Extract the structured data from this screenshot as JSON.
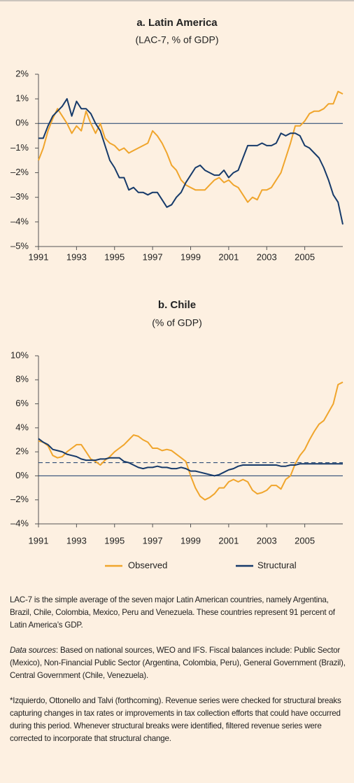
{
  "chart_data": [
    {
      "type": "line",
      "title": "a. Latin America",
      "subtitle": "(LAC-7, % of GDP)",
      "x": [
        1991,
        1991.25,
        1991.5,
        1991.75,
        1992,
        1992.25,
        1992.5,
        1992.75,
        1993,
        1993.25,
        1993.5,
        1993.75,
        1994,
        1994.25,
        1994.5,
        1994.75,
        1995,
        1995.25,
        1995.5,
        1995.75,
        1996,
        1996.25,
        1996.5,
        1996.75,
        1997,
        1997.25,
        1997.5,
        1997.75,
        1998,
        1998.25,
        1998.5,
        1998.75,
        1999,
        1999.25,
        1999.5,
        1999.75,
        2000,
        2000.25,
        2000.5,
        2000.75,
        2001,
        2001.25,
        2001.5,
        2001.75,
        2002,
        2002.25,
        2002.5,
        2002.75,
        2003,
        2003.25,
        2003.5,
        2003.75,
        2004,
        2004.25,
        2004.5,
        2004.75,
        2005,
        2005.25,
        2005.5,
        2005.75,
        2006,
        2006.25,
        2006.5,
        2006.75,
        2007
      ],
      "series": [
        {
          "name": "Observed",
          "color": "#f0a52c",
          "values": [
            -1.5,
            -1.0,
            -0.3,
            0.2,
            0.6,
            0.3,
            0.0,
            -0.4,
            -0.1,
            -0.3,
            0.5,
            0.0,
            -0.4,
            0.0,
            -0.6,
            -0.8,
            -0.9,
            -1.1,
            -1.0,
            -1.2,
            -1.1,
            -1.0,
            -0.9,
            -0.8,
            -0.3,
            -0.5,
            -0.8,
            -1.2,
            -1.7,
            -1.9,
            -2.3,
            -2.5,
            -2.6,
            -2.7,
            -2.7,
            -2.7,
            -2.5,
            -2.3,
            -2.2,
            -2.4,
            -2.3,
            -2.5,
            -2.6,
            -2.9,
            -3.2,
            -3.0,
            -3.1,
            -2.7,
            -2.7,
            -2.6,
            -2.3,
            -2.0,
            -1.4,
            -0.8,
            -0.1,
            -0.1,
            0.1,
            0.4,
            0.5,
            0.5,
            0.6,
            0.8,
            0.8,
            1.3,
            1.2
          ]
        },
        {
          "name": "Structural",
          "color": "#163a6a",
          "values": [
            -0.6,
            -0.6,
            -0.1,
            0.3,
            0.5,
            0.7,
            1.0,
            0.3,
            0.9,
            0.6,
            0.6,
            0.4,
            0.0,
            -0.3,
            -0.9,
            -1.5,
            -1.8,
            -2.2,
            -2.2,
            -2.7,
            -2.6,
            -2.8,
            -2.8,
            -2.9,
            -2.8,
            -2.8,
            -3.1,
            -3.4,
            -3.3,
            -3.0,
            -2.8,
            -2.4,
            -2.1,
            -1.8,
            -1.7,
            -1.9,
            -2.0,
            -2.1,
            -2.1,
            -1.9,
            -2.2,
            -2.0,
            -1.9,
            -1.4,
            -0.9,
            -0.9,
            -0.9,
            -0.8,
            -0.9,
            -0.9,
            -0.8,
            -0.4,
            -0.5,
            -0.4,
            -0.4,
            -0.5,
            -0.9,
            -1.0,
            -1.2,
            -1.4,
            -1.8,
            -2.3,
            -2.9,
            -3.2,
            -4.1
          ]
        }
      ],
      "xlim": [
        1991,
        2007
      ],
      "xticks": [
        1991,
        1993,
        1995,
        1997,
        1999,
        2001,
        2003,
        2005
      ],
      "ylim": [
        -5,
        2
      ],
      "yticks": [
        {
          "value": 2,
          "label": "2%"
        },
        {
          "value": 1,
          "label": "1%"
        },
        {
          "value": 0,
          "label": "0%"
        },
        {
          "value": -1,
          "label": "–1%"
        },
        {
          "value": -2,
          "label": "–2%"
        },
        {
          "value": -3,
          "label": "–3%"
        },
        {
          "value": -4,
          "label": "–4%"
        },
        {
          "value": -5,
          "label": "–5%"
        }
      ]
    },
    {
      "type": "line",
      "title": "b. Chile",
      "subtitle": "(% of GDP)",
      "x": [
        1991,
        1991.25,
        1991.5,
        1991.75,
        1992,
        1992.25,
        1992.5,
        1992.75,
        1993,
        1993.25,
        1993.5,
        1993.75,
        1994,
        1994.25,
        1994.5,
        1994.75,
        1995,
        1995.25,
        1995.5,
        1995.75,
        1996,
        1996.25,
        1996.5,
        1996.75,
        1997,
        1997.25,
        1997.5,
        1997.75,
        1998,
        1998.25,
        1998.5,
        1998.75,
        1999,
        1999.25,
        1999.5,
        1999.75,
        2000,
        2000.25,
        2000.5,
        2000.75,
        2001,
        2001.25,
        2001.5,
        2001.75,
        2002,
        2002.25,
        2002.5,
        2002.75,
        2003,
        2003.25,
        2003.5,
        2003.75,
        2004,
        2004.25,
        2004.5,
        2004.75,
        2005,
        2005.25,
        2005.5,
        2005.75,
        2006,
        2006.25,
        2006.5,
        2006.75,
        2007
      ],
      "series": [
        {
          "name": "Observed",
          "color": "#f0a52c",
          "values": [
            2.9,
            2.8,
            2.5,
            1.7,
            1.5,
            1.6,
            2.0,
            2.3,
            2.6,
            2.6,
            2.0,
            1.4,
            1.2,
            0.9,
            1.3,
            1.6,
            2.0,
            2.3,
            2.6,
            3.0,
            3.4,
            3.3,
            3.0,
            2.8,
            2.3,
            2.3,
            2.1,
            2.2,
            2.1,
            1.8,
            1.5,
            1.2,
            0.0,
            -1.0,
            -1.7,
            -2.0,
            -1.8,
            -1.5,
            -1.0,
            -1.0,
            -0.5,
            -0.3,
            -0.5,
            -0.3,
            -0.5,
            -1.2,
            -1.5,
            -1.4,
            -1.2,
            -0.8,
            -0.8,
            -1.1,
            -0.3,
            0.0,
            1.0,
            1.7,
            2.2,
            3.0,
            3.7,
            4.3,
            4.6,
            5.3,
            6.0,
            7.6,
            7.8
          ]
        },
        {
          "name": "Structural",
          "color": "#163a6a",
          "values": [
            3.1,
            2.8,
            2.6,
            2.2,
            2.1,
            2.0,
            1.8,
            1.7,
            1.6,
            1.4,
            1.3,
            1.3,
            1.3,
            1.4,
            1.4,
            1.5,
            1.5,
            1.5,
            1.2,
            1.1,
            0.9,
            0.7,
            0.6,
            0.7,
            0.7,
            0.8,
            0.7,
            0.7,
            0.6,
            0.6,
            0.7,
            0.6,
            0.4,
            0.4,
            0.3,
            0.2,
            0.1,
            0.0,
            0.1,
            0.3,
            0.5,
            0.6,
            0.8,
            0.9,
            0.9,
            0.9,
            0.9,
            0.9,
            0.9,
            0.9,
            0.9,
            0.8,
            0.8,
            0.9,
            0.9,
            1.0,
            1.0,
            1.0,
            1.0,
            1.0,
            1.0,
            1.0,
            1.0,
            1.0,
            1.0
          ]
        }
      ],
      "hline": 1.1,
      "xlim": [
        1991,
        2007
      ],
      "xticks": [
        1991,
        1993,
        1995,
        1997,
        1999,
        2001,
        2003,
        2005
      ],
      "ylim": [
        -4,
        10
      ],
      "yticks": [
        {
          "value": 10,
          "label": "10%"
        },
        {
          "value": 8,
          "label": "8%"
        },
        {
          "value": 6,
          "label": "6%"
        },
        {
          "value": 4,
          "label": "4%"
        },
        {
          "value": 2,
          "label": "2%"
        },
        {
          "value": 0,
          "label": "0%"
        },
        {
          "value": -2,
          "label": "–2%"
        },
        {
          "value": -4,
          "label": "–4%"
        }
      ]
    }
  ],
  "notes": [
    {
      "text": "LAC-7 is the simple average of the seven major Latin American countries, namely Argentina, Brazil, Chile, Colombia, Mexico, Peru and Venezuela. These countries represent 91 percent of Latin America’s GDP."
    },
    {
      "label": "Data sources",
      "text": ": Based on national sources, WEO and IFS. Fiscal balances include: Public Sector (Mexico), Non-Financial Public Sector (Argentina, Colombia, Peru), General Government (Brazil), Central Government (Chile, Venezuela)."
    },
    {
      "text": "*Izquierdo, Ottonello and Talvi (forthcoming). Revenue series were checked for structural breaks capturing changes in tax rates or improvements in tax collection efforts that could have occurred during this period. Whenever structural breaks were identified, filtered revenue series were corrected to incorporate that structural change."
    }
  ]
}
